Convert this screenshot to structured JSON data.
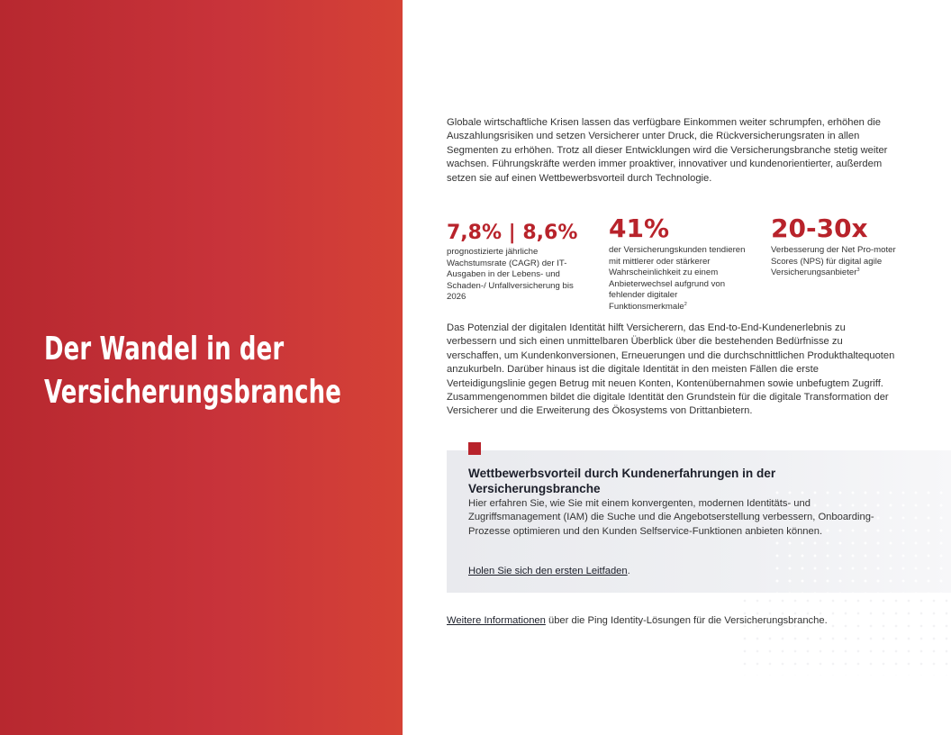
{
  "hero": {
    "title_line1": "Der Wandel in der",
    "title_line2": "Versicherungsbranche",
    "background_color": "#c8333a"
  },
  "intro": "Globale wirtschaftliche Krisen lassen das verfügbare Einkommen weiter schrumpfen, erhöhen die Auszahlungsrisiken und setzen Versicherer unter Druck, die Rückversicherungsraten in allen Segmenten zu erhöhen. Trotz all dieser Entwicklungen wird die Versicherungsbranche stetig weiter wachsen. Führungskräfte werden immer proaktiver, innovativer und kundenorientierter, außerdem setzen sie auf einen Wettbewerbsvorteil durch Technologie.",
  "stats": [
    {
      "value": "7,8% | 8,6%",
      "desc": "prognostizierte jährliche Wachstumsrate (CAGR) der IT-Ausgaben in der Lebens- und Schaden-/ Unfallversicherung bis 2026",
      "footnote": ""
    },
    {
      "value": "41%",
      "desc": "der Versicherungskunden tendieren mit mittlerer oder stärkerer Wahrscheinlichkeit zu einem Anbieterwechsel aufgrund von fehlender digitaler Funktionsmerkmale",
      "footnote": "2"
    },
    {
      "value": "20-30x",
      "desc": "Verbesserung der Net Pro-moter Scores (NPS) für digital agile Versicherungsanbieter",
      "footnote": "3"
    }
  ],
  "body": "Das Potenzial der digitalen Identität hilft Versicherern, das End-to-End-Kundenerlebnis zu verbessern und sich einen unmittelbaren Überblick über die bestehenden Bedürfnisse zu verschaffen, um Kundenkonversionen, Erneuerungen und die durchschnittlichen Produkthaltequoten anzukurbeln. Darüber hinaus ist die digitale Identität in den meisten Fällen die erste Verteidigungslinie gegen Betrug mit neuen Konten, Kontenübernahmen sowie unbefugtem Zugriff. Zusammengenommen bildet die digitale Identität den Grundstein für die digitale Transformation der Versicherer und die Erweiterung des Ökosystems von Drittanbietern.",
  "callout": {
    "title": "Wettbewerbsvorteil durch Kundenerfahrungen in der Versicherungsbranche",
    "body": "Hier erfahren Sie, wie Sie mit einem konvergenten, modernen Identitäts- und Zugriffsmanagement (IAM) die Suche und die Angebotserstellung verbessern, Onboarding-Prozesse optimieren und den Kunden Selfservice-Funktionen anbieten können.",
    "link_text": "Holen Sie sich den ersten Leitfaden",
    "link_suffix": ".",
    "marker_color": "#b8232b"
  },
  "footer": {
    "link_text": "Weitere Informationen",
    "text": " über die Ping Identity-Lösungen für die Versicherungsbranche."
  },
  "colors": {
    "accent": "#b8232b"
  }
}
